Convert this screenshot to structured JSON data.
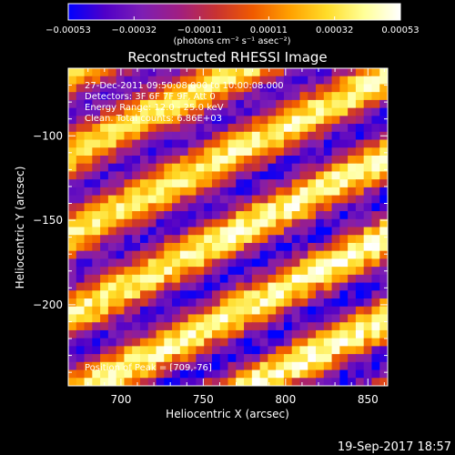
{
  "chart_data": {
    "type": "heatmap",
    "title": "Reconstructed RHESSI Image",
    "xlabel": "Heliocentric X (arcsec)",
    "ylabel": "Heliocentric Y (arcsec)",
    "xlim": [
      668,
      862
    ],
    "ylim": [
      -248,
      -60
    ],
    "xticks": [
      700,
      750,
      800,
      850
    ],
    "yticks": [
      -100,
      -150,
      -200
    ],
    "xtick_labels": [
      "700",
      "750",
      "800",
      "850"
    ],
    "ytick_labels": [
      "−100",
      "−150",
      "−200"
    ],
    "colorbar": {
      "range": [
        -0.00053,
        0.00053
      ],
      "tick_labels": [
        "−0.00053",
        "−0.00032",
        "−0.00011",
        "0.00011",
        "0.00032",
        "0.00053"
      ],
      "unit_label": "(photons cm⁻² s⁻¹ asec⁻²)",
      "colormap": [
        "#0000ff",
        "#5000c8",
        "#7d1eb4",
        "#a01e82",
        "#c83232",
        "#f05a00",
        "#ffa000",
        "#ffdc28",
        "#ffff96",
        "#ffffff"
      ]
    },
    "annotations": [
      "27-Dec-2011 09:50:08.000 to 10:00:08.000",
      "Detectors: 3F 6F 7F 9F, Att 0",
      "Energy Range: 12.0 - 25.0 keV",
      "Clean.  Total counts: 6.86E+03",
      "Position of Peak = [709,-76]"
    ],
    "pattern": {
      "description_values": "diagonal fringe pattern, flux oscillating between -0.00053 and 0.00053",
      "stripe_slope": -0.5,
      "peak_value": 0.00053,
      "min_value": -0.00053
    }
  },
  "footer": {
    "timestamp": "19-Sep-2017 18:57"
  }
}
